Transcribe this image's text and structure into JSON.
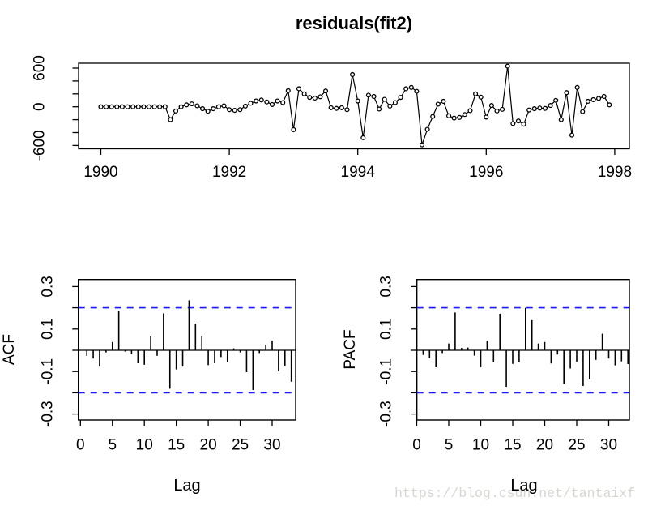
{
  "figure_title": "residuals(fit2)",
  "watermark": "https://blog.csdn.net/tantaixf",
  "colors": {
    "series": "#000000",
    "axis": "#000000",
    "conf_line": "#1a1aff",
    "watermark": "#d6d6d2"
  },
  "chart_data": [
    {
      "id": "residuals",
      "type": "line",
      "title": "residuals(fit2)",
      "xlabel": "",
      "ylabel": "",
      "marker": "open-circle",
      "grid": false,
      "x_start_year": 1990,
      "frequency_per_year": 12,
      "xlim": [
        1989.7,
        1998.2
      ],
      "ylim": [
        -660,
        680
      ],
      "xticks": [
        1990,
        1992,
        1994,
        1996,
        1998
      ],
      "ytick_values": [
        -600,
        -400,
        -200,
        0,
        200,
        400,
        600
      ],
      "ytick_labels": [
        "-600",
        "",
        "",
        "0",
        "",
        "",
        "600"
      ],
      "values": [
        0,
        0,
        0,
        0,
        0,
        0,
        0,
        0,
        0,
        0,
        0,
        0,
        0,
        -200,
        -65,
        0,
        30,
        45,
        15,
        -30,
        -70,
        -30,
        0,
        15,
        -45,
        -55,
        -45,
        10,
        55,
        90,
        105,
        75,
        35,
        90,
        65,
        250,
        -355,
        280,
        200,
        145,
        135,
        155,
        245,
        -15,
        -25,
        -15,
        -45,
        500,
        90,
        -480,
        180,
        160,
        -35,
        115,
        10,
        65,
        145,
        280,
        300,
        240,
        -590,
        -350,
        -150,
        40,
        85,
        -140,
        -175,
        -165,
        -120,
        -60,
        200,
        150,
        -160,
        20,
        -65,
        -40,
        630,
        -260,
        -220,
        -270,
        -50,
        -30,
        -20,
        -25,
        20,
        100,
        -200,
        220,
        -440,
        300,
        -75,
        85,
        110,
        130,
        160,
        30
      ]
    },
    {
      "id": "acf",
      "type": "bar",
      "title": "",
      "xlabel": "Lag",
      "ylabel": "ACF",
      "grid": false,
      "lag_start": 1,
      "xlim": [
        0,
        33
      ],
      "ylim": [
        -0.35,
        0.35
      ],
      "xticks": [
        0,
        5,
        10,
        15,
        20,
        25,
        30
      ],
      "ytick_values": [
        -0.3,
        -0.2,
        -0.1,
        0,
        0.1,
        0.2,
        0.3
      ],
      "ytick_labels": [
        "-0.3",
        "",
        "-0.1",
        "",
        "0.1",
        "",
        "0.3"
      ],
      "confidence_bounds": [
        -0.2,
        0.2
      ],
      "values": [
        -0.026,
        -0.039,
        -0.077,
        -0.01,
        0.039,
        0.185,
        -0.006,
        -0.019,
        -0.061,
        -0.068,
        0.065,
        -0.026,
        0.174,
        -0.181,
        -0.09,
        -0.077,
        0.235,
        0.125,
        0.065,
        -0.07,
        -0.061,
        -0.032,
        -0.056,
        0.009,
        -0.01,
        -0.103,
        -0.187,
        -0.013,
        0.026,
        0.045,
        -0.099,
        -0.074,
        -0.148
      ]
    },
    {
      "id": "pacf",
      "type": "bar",
      "title": "",
      "xlabel": "Lag",
      "ylabel": "PACF",
      "grid": false,
      "lag_start": 1,
      "xlim": [
        0,
        33
      ],
      "ylim": [
        -0.35,
        0.35
      ],
      "xticks": [
        0,
        5,
        10,
        15,
        20,
        25,
        30
      ],
      "ytick_values": [
        -0.3,
        -0.2,
        -0.1,
        0,
        0.1,
        0.2,
        0.3
      ],
      "ytick_labels": [
        "-0.3",
        "",
        "-0.1",
        "",
        "0.1",
        "",
        "0.3"
      ],
      "confidence_bounds": [
        -0.2,
        0.2
      ],
      "values": [
        -0.022,
        -0.038,
        -0.08,
        -0.013,
        0.032,
        0.178,
        0.011,
        0.013,
        -0.025,
        -0.08,
        0.045,
        -0.057,
        0.172,
        -0.172,
        -0.064,
        -0.057,
        0.2,
        0.142,
        0.032,
        0.039,
        -0.062,
        -0.02,
        -0.158,
        -0.086,
        -0.055,
        -0.168,
        -0.136,
        -0.045,
        0.078,
        -0.039,
        -0.071,
        -0.052,
        -0.065
      ]
    }
  ]
}
